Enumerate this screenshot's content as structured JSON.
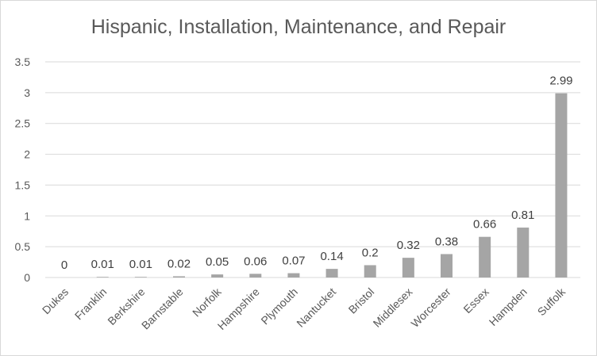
{
  "chart_data": {
    "type": "bar",
    "title": "Hispanic, Installation, Maintenance, and Repair",
    "xlabel": "",
    "ylabel": "",
    "categories": [
      "Dukes",
      "Franklin",
      "Berkshire",
      "Barnstable",
      "Norfolk",
      "Hampshire",
      "Plymouth",
      "Nantucket",
      "Bristol",
      "Middlesex",
      "Worcester",
      "Essex",
      "Hampden",
      "Suffolk"
    ],
    "values": [
      0,
      0.01,
      0.01,
      0.02,
      0.05,
      0.06,
      0.07,
      0.14,
      0.2,
      0.32,
      0.38,
      0.66,
      0.81,
      2.99
    ],
    "data_labels": [
      "0",
      "0.01",
      "0.01",
      "0.02",
      "0.05",
      "0.06",
      "0.07",
      "0.14",
      "0.2",
      "0.32",
      "0.38",
      "0.66",
      "0.81",
      "2.99"
    ],
    "ylim": [
      0,
      3.5
    ],
    "yticks": [
      "0",
      "0.5",
      "1",
      "1.5",
      "2",
      "2.5",
      "3",
      "3.5"
    ],
    "grid": true,
    "bar_color": "#a5a5a5",
    "grid_color": "#d9d9d9"
  }
}
